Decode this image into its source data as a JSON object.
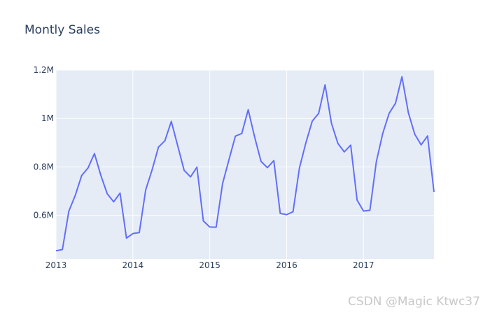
{
  "chart_data": {
    "type": "line",
    "title": "Montly Sales",
    "xlabel": "",
    "ylabel": "",
    "xlim": [
      2013.0,
      2017.917
    ],
    "ylim": [
      0.42,
      1.2
    ],
    "x_ticks": [
      {
        "value": 2013,
        "label": "2013"
      },
      {
        "value": 2014,
        "label": "2014"
      },
      {
        "value": 2015,
        "label": "2015"
      },
      {
        "value": 2016,
        "label": "2016"
      },
      {
        "value": 2017,
        "label": "2017"
      }
    ],
    "y_ticks": [
      {
        "value": 0.6,
        "label": "0.6M"
      },
      {
        "value": 0.8,
        "label": "0.8M"
      },
      {
        "value": 1.0,
        "label": "1M"
      },
      {
        "value": 1.2,
        "label": "1.2M"
      }
    ],
    "series": [
      {
        "color": "#636efa",
        "x": [
          "2013-01",
          "2013-02",
          "2013-03",
          "2013-04",
          "2013-05",
          "2013-06",
          "2013-07",
          "2013-08",
          "2013-09",
          "2013-10",
          "2013-11",
          "2013-12",
          "2014-01",
          "2014-02",
          "2014-03",
          "2014-04",
          "2014-05",
          "2014-06",
          "2014-07",
          "2014-08",
          "2014-09",
          "2014-10",
          "2014-11",
          "2014-12",
          "2015-01",
          "2015-02",
          "2015-03",
          "2015-04",
          "2015-05",
          "2015-06",
          "2015-07",
          "2015-08",
          "2015-09",
          "2015-10",
          "2015-11",
          "2015-12",
          "2016-01",
          "2016-02",
          "2016-03",
          "2016-04",
          "2016-05",
          "2016-06",
          "2016-07",
          "2016-08",
          "2016-09",
          "2016-10",
          "2016-11",
          "2016-12",
          "2017-01",
          "2017-02",
          "2017-03",
          "2017-04",
          "2017-05",
          "2017-06",
          "2017-07",
          "2017-08",
          "2017-09",
          "2017-10",
          "2017-11",
          "2017-12"
        ],
        "values": [
          0.454,
          0.459,
          0.617,
          0.682,
          0.764,
          0.796,
          0.855,
          0.765,
          0.689,
          0.656,
          0.692,
          0.506,
          0.525,
          0.529,
          0.705,
          0.788,
          0.882,
          0.908,
          0.988,
          0.887,
          0.786,
          0.759,
          0.799,
          0.577,
          0.552,
          0.551,
          0.731,
          0.83,
          0.927,
          0.938,
          1.036,
          0.924,
          0.823,
          0.797,
          0.826,
          0.608,
          0.603,
          0.615,
          0.796,
          0.899,
          0.989,
          1.021,
          1.139,
          0.98,
          0.897,
          0.862,
          0.89,
          0.663,
          0.618,
          0.621,
          0.821,
          0.938,
          1.021,
          1.063,
          1.172,
          1.024,
          0.935,
          0.891,
          0.928,
          0.697
        ]
      }
    ],
    "grid": true,
    "legend": "none"
  },
  "watermark": "CSDN @Magic Ktwc37"
}
